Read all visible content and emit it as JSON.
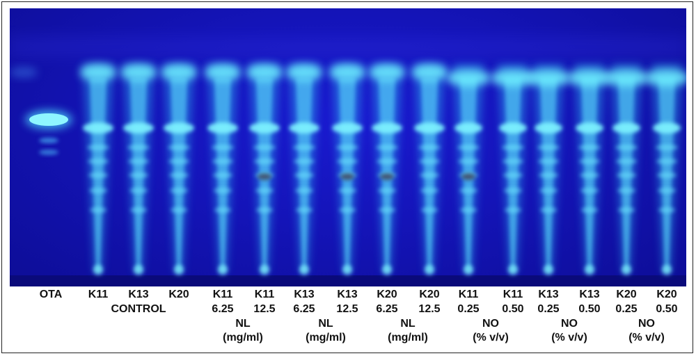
{
  "photo": {
    "description_colors": {
      "plate_bg": "#1414b8",
      "band_glow": "#4fe0ff",
      "band_core": "#7ff4ff",
      "standard_spot": "#6ff2ff"
    }
  },
  "labels": {
    "lane_names": [
      "OTA",
      "K11",
      "K13",
      "K20",
      "K11",
      "K11",
      "K13",
      "K13",
      "K20",
      "K20",
      "K11",
      "K11",
      "K13",
      "K13",
      "K20",
      "K20"
    ],
    "concentrations": [
      "6.25",
      "12.5",
      "6.25",
      "12.5",
      "6.25",
      "12.5",
      "0.25",
      "0.50",
      "0.25",
      "0.50",
      "0.25",
      "0.50"
    ],
    "control": "CONTROL",
    "groups": [
      {
        "name": "NL",
        "unit": "(mg/ml)"
      },
      {
        "name": "NL",
        "unit": "(mg/ml)"
      },
      {
        "name": "NL",
        "unit": "(mg/ml)"
      },
      {
        "name": "NO",
        "unit": "(% v/v)"
      },
      {
        "name": "NO",
        "unit": "(% v/v)"
      },
      {
        "name": "NO",
        "unit": "(% v/v)"
      }
    ]
  }
}
